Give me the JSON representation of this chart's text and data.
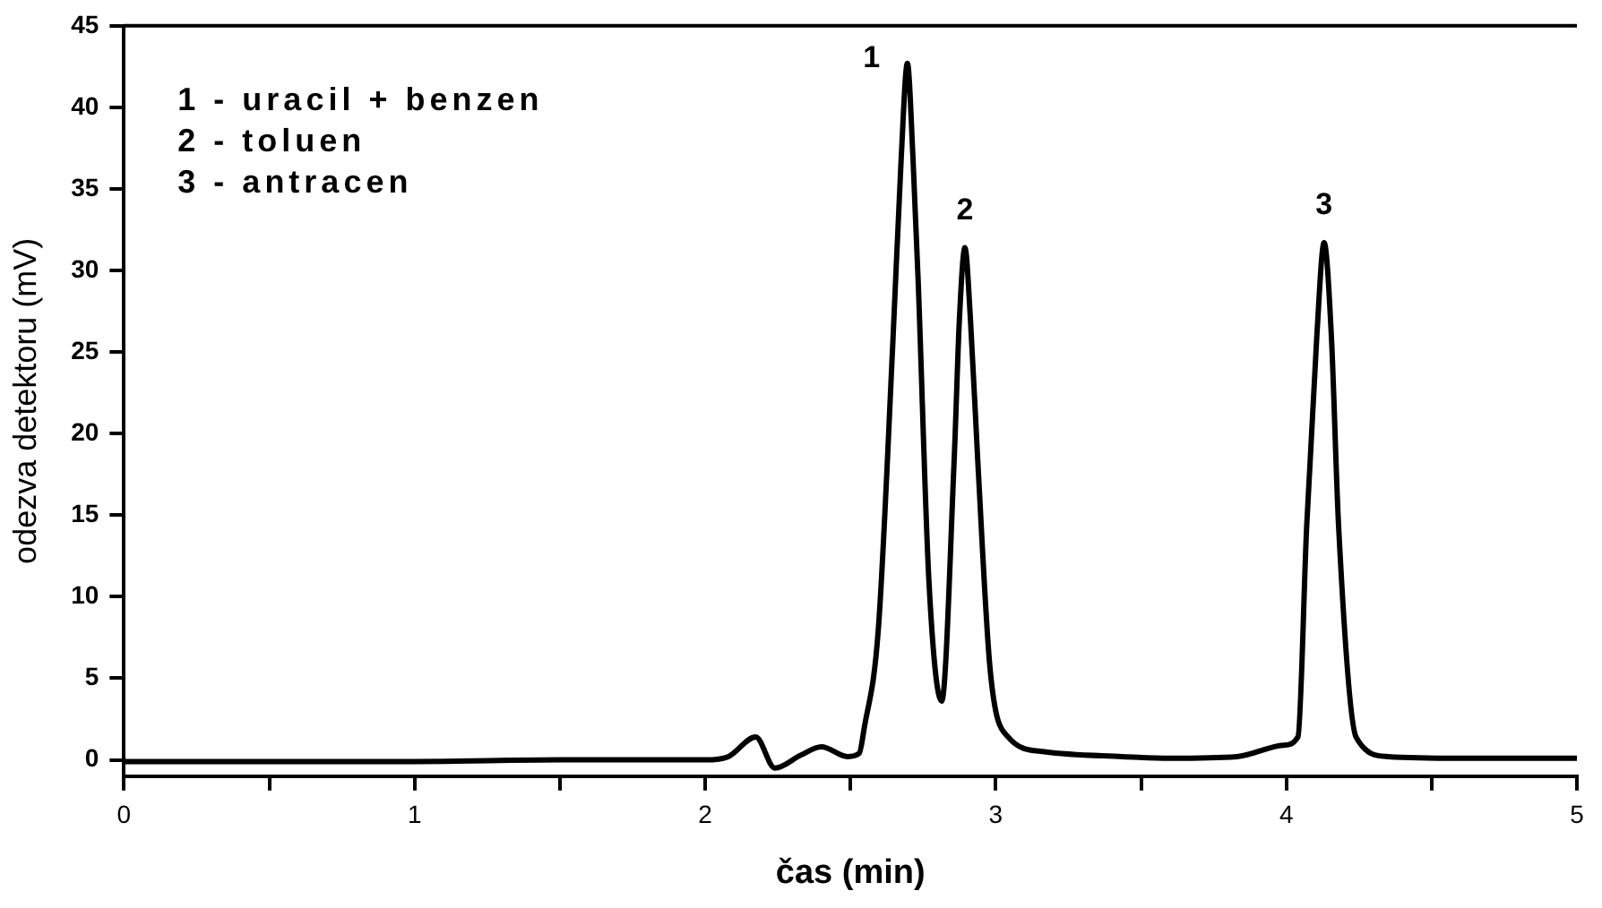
{
  "chart_data": {
    "type": "line",
    "xlabel": "čas (min)",
    "ylabel": "odezva detektoru (mV)",
    "xlim": [
      0,
      5
    ],
    "ylim": [
      -1,
      45
    ],
    "xticks": [
      0,
      {
        "value": 0.5,
        "label": null
      },
      1,
      {
        "value": 1.5,
        "label": null
      },
      2,
      {
        "value": 2.5,
        "label": null
      },
      3,
      {
        "value": 3.5,
        "label": null
      },
      4,
      {
        "value": 4.5,
        "label": null
      },
      5
    ],
    "yticks": [
      0,
      5,
      10,
      15,
      20,
      25,
      30,
      35,
      40,
      45
    ],
    "grid": false,
    "legend": false,
    "marker": "none",
    "line_style": "solid",
    "series": [
      {
        "color": "#000000",
        "x": [
          0,
          0.5,
          1,
          1.5,
          2,
          2.08,
          2.174,
          2.24,
          2.33,
          2.4,
          2.49,
          2.53,
          2.547,
          2.596,
          2.646,
          2.675,
          2.696,
          2.715,
          2.733,
          2.77,
          2.814,
          2.857,
          2.875,
          2.894,
          2.913,
          2.938,
          2.981,
          3.043,
          3.168,
          3.435,
          3.6,
          3.83,
          3.99,
          4.04,
          4.07,
          4.105,
          4.13,
          4.155,
          4.18,
          4.24,
          4.35,
          4.6,
          5
        ],
        "values": [
          -0.1,
          -0.1,
          -0.1,
          0,
          0,
          0.2,
          1.4,
          -0.5,
          0.3,
          0.8,
          0.2,
          0.4,
          1.9,
          8,
          25.6,
          37,
          42.7,
          37,
          29.4,
          11,
          3.6,
          18.4,
          27,
          31.4,
          27,
          18.4,
          5.5,
          1.4,
          0.5,
          0.2,
          0.1,
          0.2,
          0.9,
          1.4,
          14.3,
          26,
          31.7,
          26,
          14.3,
          1.4,
          0.2,
          0.1,
          0.1
        ]
      }
    ],
    "annotations": [
      {
        "text": "1",
        "x": 2.696,
        "y": 42.7
      },
      {
        "text": "2",
        "x": 2.894,
        "y": 31.4
      },
      {
        "text": "3",
        "x": 4.13,
        "y": 31.7
      },
      "1 - uracil + benzen",
      "2 - toluen",
      "3 - antracen"
    ]
  }
}
